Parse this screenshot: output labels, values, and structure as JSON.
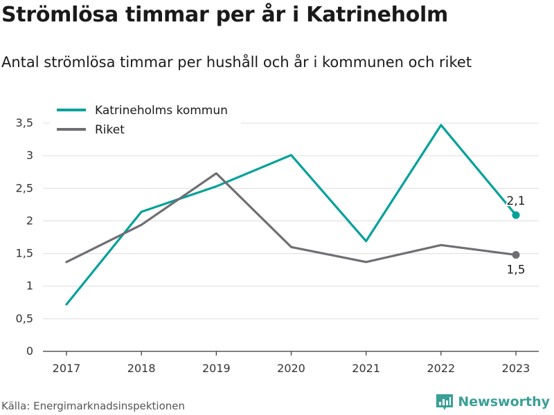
{
  "header": {
    "title": "Strömlösa timmar per år i Katrineholm",
    "subtitle": "Antal strömlösa timmar per hushåll och år i kommunen och riket"
  },
  "footer": {
    "source": "Källa: Energimarknadsinspektionen",
    "brand": "Newsworthy",
    "brand_icon": "bar-chart-logo-icon"
  },
  "colors": {
    "kommun": "#00a19a",
    "riket": "#6e6e73",
    "grid": "#dcdcdc",
    "brand": "#3a9f96"
  },
  "chart_data": {
    "type": "line",
    "x": [
      "2017",
      "2018",
      "2019",
      "2020",
      "2021",
      "2022",
      "2023"
    ],
    "series": [
      {
        "name": "Katrineholms kommun",
        "values": [
          0.72,
          2.14,
          2.53,
          3.01,
          1.69,
          3.47,
          2.09
        ]
      },
      {
        "name": "Riket",
        "values": [
          1.37,
          1.94,
          2.73,
          1.6,
          1.37,
          1.63,
          1.48
        ]
      }
    ],
    "ylim": [
      0,
      3.5
    ],
    "yticks": [
      0,
      0.5,
      1,
      1.5,
      2,
      2.5,
      3,
      3.5
    ],
    "ytick_labels": [
      "0",
      "0,5",
      "1",
      "1,5",
      "2",
      "2,5",
      "3",
      "3,5"
    ],
    "end_labels": [
      "2,1",
      "1,5"
    ],
    "grid": true,
    "legend_position": "top-left"
  }
}
